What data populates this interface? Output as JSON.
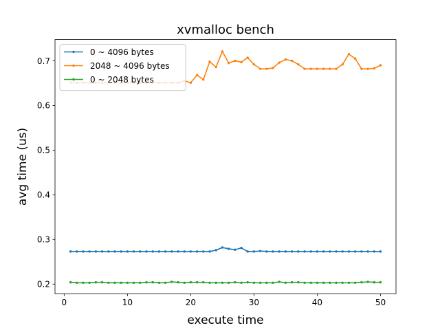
{
  "chart_data": {
    "type": "line",
    "title": "xvmalloc bench",
    "xlabel": "execute time",
    "ylabel": "avg time (us)",
    "xlim": [
      -1.45,
      52.45
    ],
    "ylim": [
      0.1785,
      0.7475
    ],
    "xticks": [
      0,
      10,
      20,
      30,
      40,
      50
    ],
    "yticks": [
      0.2,
      0.3,
      0.4,
      0.5,
      0.6,
      0.7
    ],
    "grid": false,
    "legend_position": "top-left",
    "x": [
      1,
      2,
      3,
      4,
      5,
      6,
      7,
      8,
      9,
      10,
      11,
      12,
      13,
      14,
      15,
      16,
      17,
      18,
      19,
      20,
      21,
      22,
      23,
      24,
      25,
      26,
      27,
      28,
      29,
      30,
      31,
      32,
      33,
      34,
      35,
      36,
      37,
      38,
      39,
      40,
      41,
      42,
      43,
      44,
      45,
      46,
      47,
      48,
      49,
      50
    ],
    "series": [
      {
        "name": "0 ~ 4096 bytes",
        "color": "#1f77b4",
        "values": [
          0.273,
          0.273,
          0.273,
          0.273,
          0.273,
          0.273,
          0.273,
          0.273,
          0.273,
          0.273,
          0.273,
          0.273,
          0.273,
          0.273,
          0.273,
          0.273,
          0.273,
          0.273,
          0.273,
          0.273,
          0.273,
          0.273,
          0.273,
          0.276,
          0.282,
          0.279,
          0.277,
          0.281,
          0.273,
          0.273,
          0.274,
          0.273,
          0.273,
          0.273,
          0.273,
          0.273,
          0.273,
          0.273,
          0.273,
          0.273,
          0.273,
          0.273,
          0.273,
          0.273,
          0.273,
          0.273,
          0.273,
          0.273,
          0.273,
          0.273
        ]
      },
      {
        "name": "2048 ~ 4096 bytes",
        "color": "#ff7f0e",
        "values": [
          0.651,
          0.651,
          0.651,
          0.651,
          0.651,
          0.651,
          0.651,
          0.651,
          0.651,
          0.651,
          0.651,
          0.651,
          0.651,
          0.651,
          0.651,
          0.651,
          0.651,
          0.651,
          0.655,
          0.651,
          0.668,
          0.658,
          0.698,
          0.686,
          0.721,
          0.695,
          0.7,
          0.697,
          0.707,
          0.692,
          0.682,
          0.682,
          0.684,
          0.696,
          0.703,
          0.7,
          0.692,
          0.682,
          0.682,
          0.682,
          0.682,
          0.682,
          0.682,
          0.692,
          0.715,
          0.705,
          0.682,
          0.682,
          0.683,
          0.69
        ]
      },
      {
        "name": "0 ~ 2048 bytes",
        "color": "#2ca02c",
        "values": [
          0.204,
          0.203,
          0.203,
          0.203,
          0.204,
          0.204,
          0.203,
          0.203,
          0.203,
          0.203,
          0.203,
          0.203,
          0.204,
          0.204,
          0.203,
          0.203,
          0.205,
          0.204,
          0.203,
          0.204,
          0.204,
          0.204,
          0.203,
          0.203,
          0.203,
          0.203,
          0.204,
          0.203,
          0.204,
          0.203,
          0.203,
          0.203,
          0.203,
          0.205,
          0.203,
          0.204,
          0.204,
          0.203,
          0.203,
          0.203,
          0.203,
          0.203,
          0.203,
          0.203,
          0.203,
          0.203,
          0.204,
          0.205,
          0.204,
          0.204
        ]
      }
    ]
  }
}
